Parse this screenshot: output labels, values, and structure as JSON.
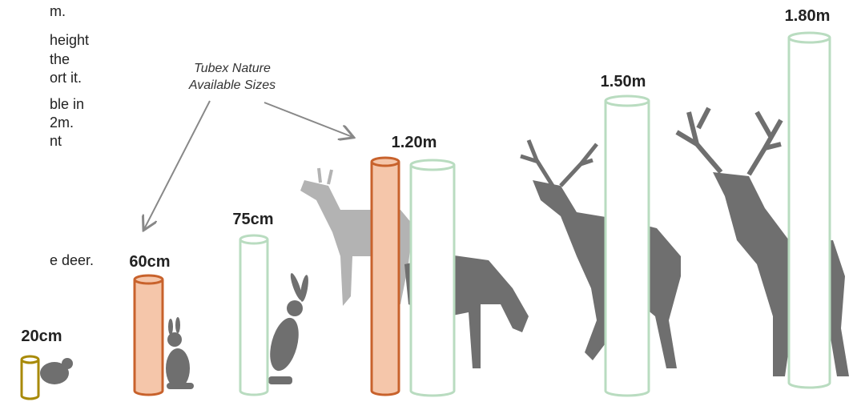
{
  "side_text": [
    "m.",
    "height",
    "the",
    "ort it.",
    "ble in",
    "2m.",
    "nt",
    "e deer."
  ],
  "annotation": [
    "Tubex Nature",
    "Available Sizes"
  ],
  "tubes": [
    "20cm",
    "60cm",
    "75cm",
    "1.20m",
    "1.50m",
    "1.80m"
  ]
}
